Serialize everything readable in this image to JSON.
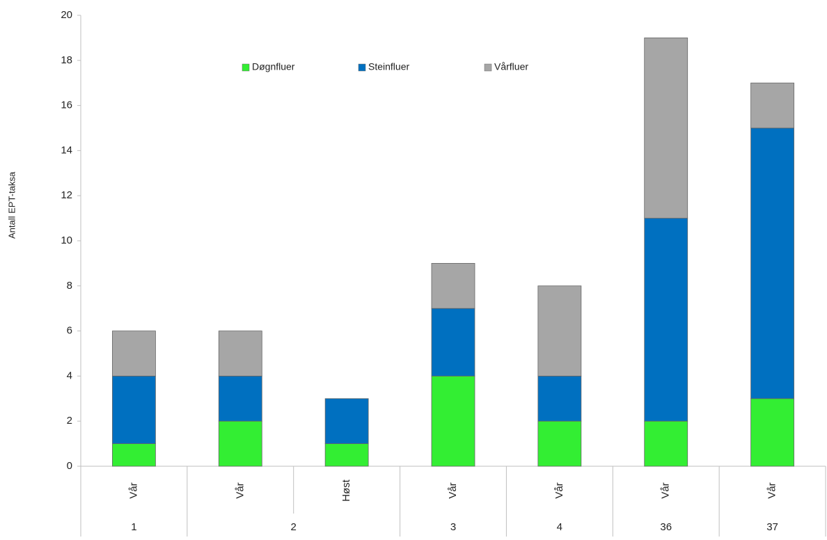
{
  "chart_data": {
    "type": "stacked_bar",
    "y_label": "Antall EPT-taksa",
    "categories": [
      "Vår",
      "Vår",
      "Høst",
      "Vår",
      "Vår",
      "Vår",
      "Vår"
    ],
    "groups": [
      "1",
      "2",
      "3",
      "4",
      "36",
      "37"
    ],
    "group_sizes": [
      1,
      2,
      1,
      1,
      1,
      1
    ],
    "series": [
      {
        "name": "Døgnfluer",
        "color": "#33ee33",
        "values": [
          1,
          2,
          1,
          4,
          2,
          2,
          3
        ]
      },
      {
        "name": "Steinfluer",
        "color": "#0070c0",
        "values": [
          3,
          2,
          2,
          3,
          2,
          9,
          12
        ]
      },
      {
        "name": "Vårfluer",
        "color": "#a6a6a6",
        "values": [
          2,
          2,
          null,
          2,
          4,
          8,
          2
        ]
      }
    ],
    "ylim": [
      0,
      20
    ],
    "yticks": [
      0,
      2,
      4,
      6,
      8,
      10,
      12,
      14,
      16,
      18,
      20
    ],
    "grid": false,
    "legend": "top"
  }
}
